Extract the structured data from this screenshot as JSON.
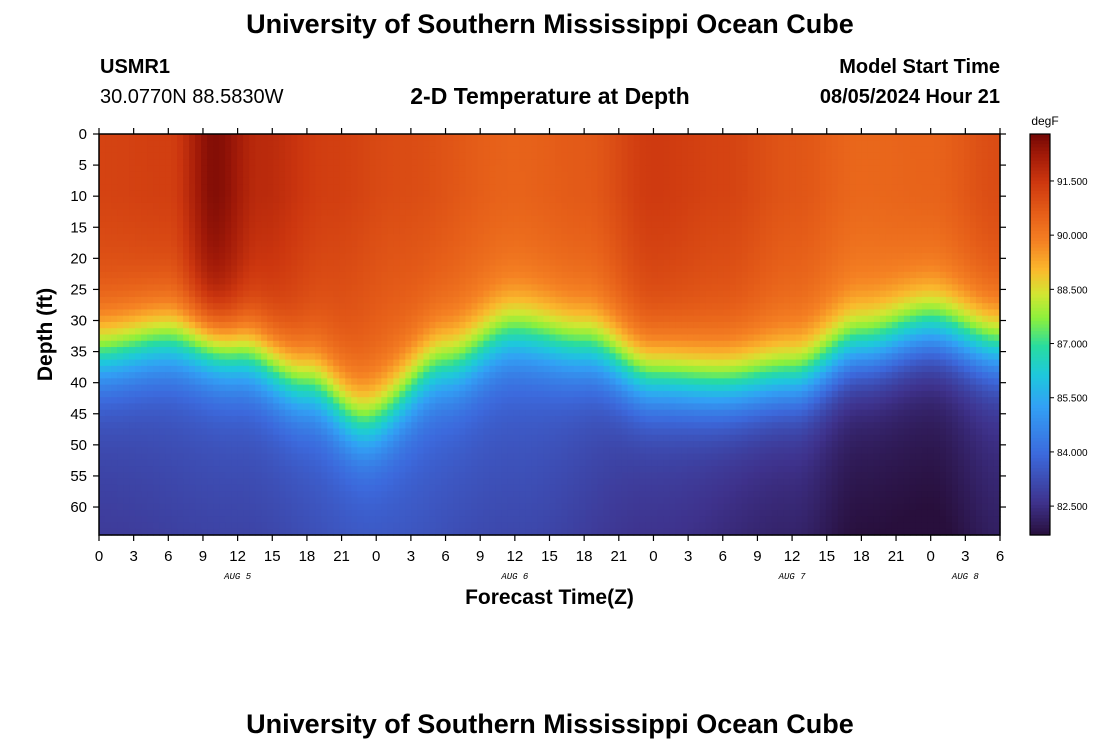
{
  "header": {
    "title": "University of Southern Mississippi Ocean Cube",
    "station_id": "USMR1",
    "location": "30.0770N  88.5830W",
    "subtitle": "2-D Temperature at Depth",
    "model_start_label": "Model Start Time",
    "model_start_value": "08/05/2024 Hour 21"
  },
  "footer": {
    "title": "University of Southern Mississippi Ocean Cube"
  },
  "chart_data": {
    "type": "heatmap",
    "title": "2-D Temperature at Depth",
    "xlabel": "Forecast Time(Z)",
    "ylabel": "Depth (ft)",
    "x_tick_labels": [
      "0",
      "3",
      "6",
      "9",
      "12",
      "15",
      "18",
      "21",
      "0",
      "3",
      "6",
      "9",
      "12",
      "15",
      "18",
      "21",
      "0",
      "3",
      "6",
      "9",
      "12",
      "15",
      "18",
      "21",
      "0",
      "3",
      "6"
    ],
    "x_range_hours": [
      0,
      78
    ],
    "date_labels": [
      {
        "label": "AUG 5",
        "hour": 12
      },
      {
        "label": "AUG 6",
        "hour": 36
      },
      {
        "label": "AUG 7",
        "hour": 60
      },
      {
        "label": "AUG 8",
        "hour": 75
      }
    ],
    "y_tick_labels": [
      "0",
      "5",
      "10",
      "15",
      "20",
      "25",
      "30",
      "35",
      "40",
      "45",
      "50",
      "55",
      "60"
    ],
    "y_range_ft": [
      0,
      64.5
    ],
    "colorbar": {
      "unit": "degF",
      "tick_labels": [
        "91.500",
        "90.000",
        "88.500",
        "87.000",
        "85.500",
        "84.000",
        "82.500"
      ],
      "tick_values": [
        91.5,
        90.0,
        88.5,
        87.0,
        85.5,
        84.0,
        82.5
      ],
      "range": [
        81.7,
        92.8
      ]
    },
    "field": {
      "description": "temperature (degF) vs forecast hour and depth (ft)",
      "mixed_layer_depth_ft": {
        "hours": [
          0,
          6,
          12,
          18,
          23,
          30,
          36,
          42,
          48,
          54,
          60,
          66,
          72,
          78
        ],
        "values": [
          29,
          27,
          29,
          34,
          40,
          31,
          26,
          28,
          33,
          34,
          33,
          28,
          25,
          28
        ]
      },
      "surface_temp_degF": {
        "hours": [
          0,
          6,
          10,
          14,
          20,
          26,
          36,
          42,
          48,
          54,
          60,
          66,
          72,
          78
        ],
        "values": [
          91.2,
          91.3,
          92.6,
          91.8,
          91.3,
          91.0,
          90.5,
          90.7,
          91.4,
          91.2,
          90.8,
          90.4,
          90.5,
          91.0
        ]
      },
      "deep_temp_degF": {
        "hours": [
          0,
          12,
          24,
          36,
          48,
          60,
          66,
          72,
          78
        ],
        "values": [
          83.2,
          83.4,
          83.9,
          83.5,
          83.0,
          82.6,
          82.1,
          82.0,
          82.5
        ]
      }
    }
  }
}
